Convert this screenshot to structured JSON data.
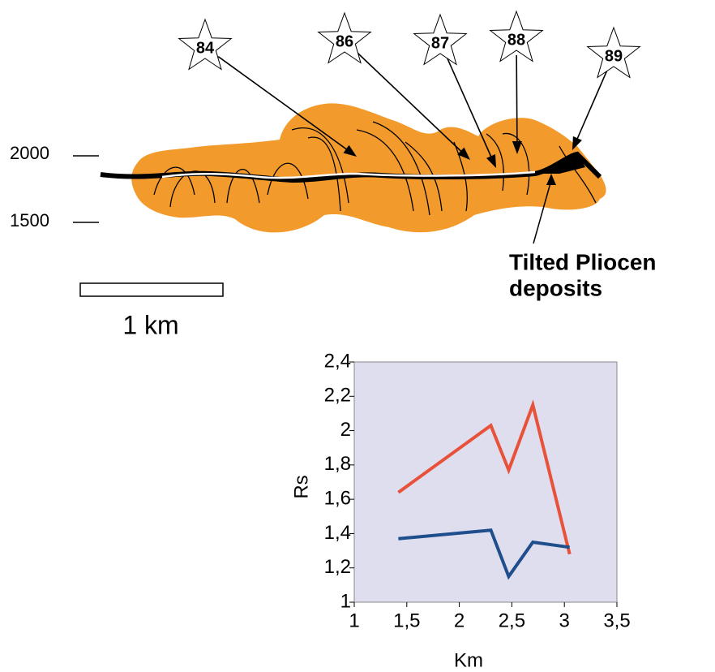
{
  "diagram": {
    "stars": [
      "84",
      "86",
      "87",
      "88",
      "89"
    ],
    "elevation_labels": [
      "2000",
      "1500"
    ],
    "annotation": [
      "Tilted Pliocen",
      "deposits"
    ],
    "scale_label": "1 km"
  },
  "chart_data": {
    "type": "line",
    "xlabel": "Km",
    "ylabel": "Rs",
    "xlim": [
      1,
      3.5
    ],
    "ylim": [
      1,
      2.4
    ],
    "xticks": [
      1,
      {
        "value": 1.5,
        "label": "1,5"
      },
      2,
      {
        "value": 2.5,
        "label": "2,5"
      },
      3,
      {
        "value": 3.5,
        "label": "3,5"
      }
    ],
    "yticks": [
      1,
      {
        "value": 1.2,
        "label": "1,2"
      },
      {
        "value": 1.4,
        "label": "1,4"
      },
      {
        "value": 1.6,
        "label": "1,6"
      },
      {
        "value": 1.8,
        "label": "1,8"
      },
      2,
      {
        "value": 2.2,
        "label": "2,2"
      },
      {
        "value": 2.4,
        "label": "2,4"
      }
    ],
    "background": "#dfdeef",
    "series": [
      {
        "color": "#e8513a",
        "x": [
          1.42,
          2.3,
          2.47,
          2.7,
          3.05
        ],
        "values": [
          1.64,
          2.03,
          1.77,
          2.15,
          1.28
        ]
      },
      {
        "color": "#1f4e8c",
        "x": [
          1.42,
          2.3,
          2.47,
          2.7,
          3.05
        ],
        "values": [
          1.37,
          1.42,
          1.15,
          1.35,
          1.32
        ]
      }
    ]
  }
}
